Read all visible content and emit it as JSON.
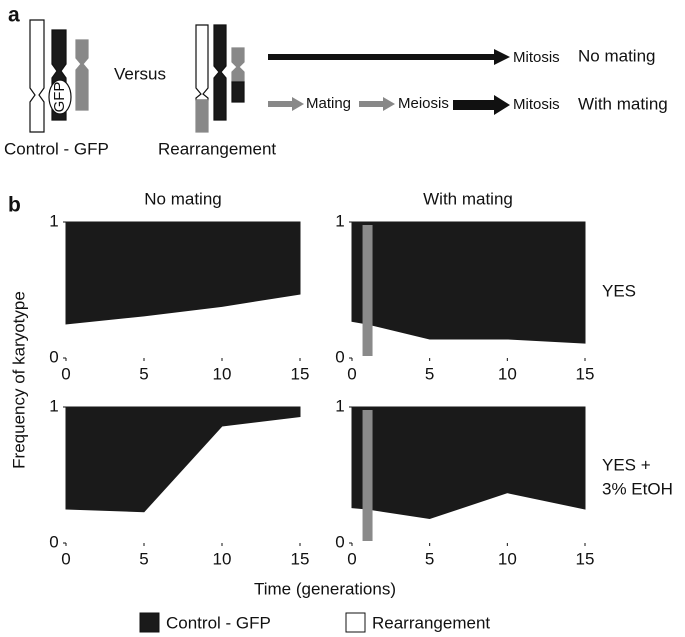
{
  "panel_a": {
    "label": "a",
    "versus": "Versus",
    "gfp": "GFP",
    "control_label": "Control - GFP",
    "rearrangement_label": "Rearrangement",
    "top_path": {
      "steps": [
        "Mitosis"
      ],
      "outcome": "No mating"
    },
    "bottom_path": {
      "steps": [
        "Mating",
        "Meiosis",
        "Mitosis"
      ],
      "outcome": "With mating"
    }
  },
  "panel_b": {
    "label": "b",
    "column_titles": [
      "No mating",
      "With mating"
    ],
    "row_labels": [
      [
        "YES"
      ],
      [
        "YES +",
        "3% EtOH"
      ]
    ],
    "ylabel": "Frequency of karyotype",
    "xlabel": "Time (generations)"
  },
  "chart_data": {
    "type": "area",
    "stacked": true,
    "series": [
      {
        "name": "Rearrangement",
        "color": "#ffffff"
      },
      {
        "name": "Control - GFP",
        "color": "#1a1a1a"
      }
    ],
    "event_color": "#8a8a8a",
    "xlim": [
      0,
      15
    ],
    "xticks": [
      0,
      5,
      10,
      15
    ],
    "ylim": [
      0,
      1
    ],
    "yticks": [
      0,
      1
    ],
    "panels": [
      {
        "row": 0,
        "column": 0,
        "x": [
          0,
          5,
          10,
          15
        ],
        "series": [
          {
            "values": [
              0.25,
              0.31,
              0.38,
              0.47
            ]
          },
          {
            "values": [
              0.75,
              0.69,
              0.62,
              0.53
            ]
          }
        ]
      },
      {
        "row": 0,
        "column": 1,
        "event_x": 1,
        "x": [
          0,
          1,
          5,
          10,
          15
        ],
        "series": [
          {
            "values": [
              0.27,
              0.25,
              0.14,
              0.14,
              0.11
            ]
          },
          {
            "values": [
              0.73,
              0.75,
              0.86,
              0.86,
              0.89
            ]
          }
        ]
      },
      {
        "row": 1,
        "column": 0,
        "x": [
          0,
          5,
          10,
          15
        ],
        "series": [
          {
            "values": [
              0.25,
              0.23,
              0.86,
              0.93
            ]
          },
          {
            "values": [
              0.75,
              0.77,
              0.14,
              0.07
            ]
          }
        ]
      },
      {
        "row": 1,
        "column": 1,
        "event_x": 1,
        "x": [
          0,
          1,
          5,
          10,
          15
        ],
        "series": [
          {
            "values": [
              0.26,
              0.25,
              0.18,
              0.37,
              0.25
            ]
          },
          {
            "values": [
              0.74,
              0.75,
              0.82,
              0.63,
              0.75
            ]
          }
        ]
      }
    ]
  }
}
